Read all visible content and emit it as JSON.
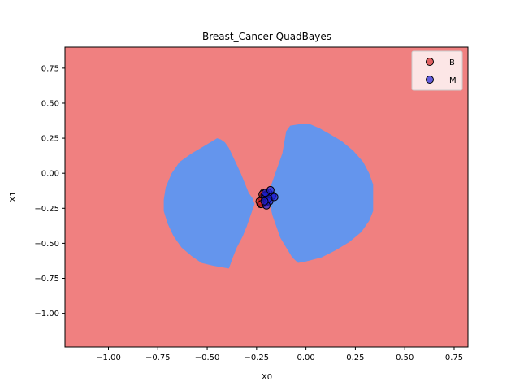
{
  "chart_data": {
    "type": "scatter",
    "title": "Breast_Cancer QuadBayes",
    "xlabel": "X0",
    "ylabel": "X1",
    "xlim": [
      -1.22,
      0.82
    ],
    "ylim": [
      -1.24,
      0.9
    ],
    "x_ticks": [
      -1.0,
      -0.75,
      -0.5,
      -0.25,
      0.0,
      0.25,
      0.5,
      0.75
    ],
    "x_tick_labels": [
      "−1.00",
      "−0.75",
      "−0.50",
      "−0.25",
      "0.00",
      "0.25",
      "0.50",
      "0.75"
    ],
    "y_ticks": [
      0.75,
      0.5,
      0.25,
      0.0,
      -0.25,
      -0.5,
      -0.75,
      -1.0
    ],
    "y_tick_labels": [
      "0.75",
      "0.50",
      "0.25",
      "0.00",
      "−0.25",
      "−0.50",
      "−0.75",
      "−1.00"
    ],
    "grid": false,
    "legend_position": "top-right",
    "background_region": {
      "class": "B",
      "color": "#f08080"
    },
    "decision_regions": [
      {
        "class": "M",
        "color": "#6495ed",
        "polygon": [
          [
            -0.45,
            0.25
          ],
          [
            -0.43,
            0.24
          ],
          [
            -0.41,
            0.22
          ],
          [
            -0.39,
            0.18
          ],
          [
            -0.37,
            0.12
          ],
          [
            -0.35,
            0.06
          ],
          [
            -0.33,
            0.0
          ],
          [
            -0.31,
            -0.07
          ],
          [
            -0.29,
            -0.14
          ],
          [
            -0.27,
            -0.18
          ],
          [
            -0.26,
            -0.22
          ],
          [
            -0.28,
            -0.3
          ],
          [
            -0.3,
            -0.38
          ],
          [
            -0.32,
            -0.45
          ],
          [
            -0.35,
            -0.53
          ],
          [
            -0.37,
            -0.6
          ],
          [
            -0.39,
            -0.68
          ],
          [
            -0.43,
            -0.67
          ],
          [
            -0.47,
            -0.66
          ],
          [
            -0.53,
            -0.64
          ],
          [
            -0.58,
            -0.59
          ],
          [
            -0.63,
            -0.53
          ],
          [
            -0.67,
            -0.45
          ],
          [
            -0.7,
            -0.36
          ],
          [
            -0.72,
            -0.27
          ],
          [
            -0.72,
            -0.19
          ],
          [
            -0.71,
            -0.1
          ],
          [
            -0.68,
            0.0
          ],
          [
            -0.64,
            0.08
          ],
          [
            -0.58,
            0.14
          ],
          [
            -0.52,
            0.19
          ]
        ]
      },
      {
        "class": "M",
        "color": "#6495ed",
        "polygon": [
          [
            -0.08,
            0.34
          ],
          [
            -0.03,
            0.35
          ],
          [
            0.02,
            0.35
          ],
          [
            0.07,
            0.32
          ],
          [
            0.12,
            0.28
          ],
          [
            0.18,
            0.23
          ],
          [
            0.24,
            0.16
          ],
          [
            0.29,
            0.08
          ],
          [
            0.32,
            0.0
          ],
          [
            0.34,
            -0.08
          ],
          [
            0.34,
            -0.18
          ],
          [
            0.34,
            -0.27
          ],
          [
            0.32,
            -0.34
          ],
          [
            0.28,
            -0.42
          ],
          [
            0.22,
            -0.49
          ],
          [
            0.15,
            -0.55
          ],
          [
            0.08,
            -0.6
          ],
          [
            0.0,
            -0.63
          ],
          [
            -0.04,
            -0.64
          ],
          [
            -0.07,
            -0.6
          ],
          [
            -0.1,
            -0.53
          ],
          [
            -0.13,
            -0.46
          ],
          [
            -0.15,
            -0.38
          ],
          [
            -0.17,
            -0.3
          ],
          [
            -0.18,
            -0.24
          ],
          [
            -0.19,
            -0.18
          ],
          [
            -0.18,
            -0.1
          ],
          [
            -0.16,
            -0.02
          ],
          [
            -0.14,
            0.06
          ],
          [
            -0.12,
            0.14
          ],
          [
            -0.11,
            0.22
          ],
          [
            -0.1,
            0.3
          ]
        ]
      }
    ],
    "series": [
      {
        "name": "B",
        "color": "#d62728",
        "points": [
          [
            -0.23,
            -0.22
          ],
          [
            -0.225,
            -0.2
          ],
          [
            -0.22,
            -0.18
          ],
          [
            -0.215,
            -0.16
          ],
          [
            -0.21,
            -0.19
          ],
          [
            -0.205,
            -0.21
          ],
          [
            -0.215,
            -0.14
          ],
          [
            -0.22,
            -0.15
          ],
          [
            -0.205,
            -0.17
          ],
          [
            -0.235,
            -0.2
          ],
          [
            -0.2,
            -0.2
          ],
          [
            -0.225,
            -0.22
          ]
        ]
      },
      {
        "name": "M",
        "color": "#1f1fd6",
        "points": [
          [
            -0.2,
            -0.17
          ],
          [
            -0.195,
            -0.19
          ],
          [
            -0.19,
            -0.14
          ],
          [
            -0.185,
            -0.2
          ],
          [
            -0.21,
            -0.16
          ],
          [
            -0.2,
            -0.23
          ],
          [
            -0.17,
            -0.16
          ],
          [
            -0.16,
            -0.17
          ],
          [
            -0.19,
            -0.18
          ],
          [
            -0.205,
            -0.14
          ],
          [
            -0.18,
            -0.12
          ],
          [
            -0.21,
            -0.2
          ]
        ]
      }
    ]
  }
}
